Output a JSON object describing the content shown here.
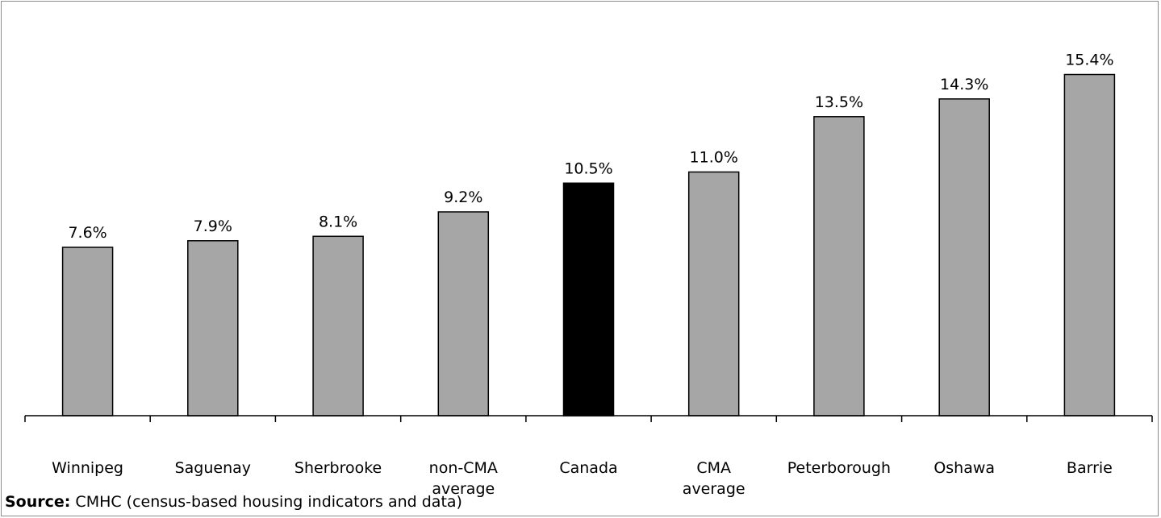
{
  "chart_data": {
    "type": "bar",
    "categories": [
      [
        "Winnipeg"
      ],
      [
        "Saguenay"
      ],
      [
        "Sherbrooke"
      ],
      [
        "non-CMA",
        "average"
      ],
      [
        "Canada"
      ],
      [
        "CMA",
        "average"
      ],
      [
        "Peterborough"
      ],
      [
        "Oshawa"
      ],
      [
        "Barrie"
      ]
    ],
    "values": [
      7.6,
      7.9,
      8.1,
      9.2,
      10.5,
      11.0,
      13.5,
      14.3,
      15.4
    ],
    "data_labels": [
      "7.6%",
      "7.9%",
      "8.1%",
      "9.2%",
      "10.5%",
      "11.0%",
      "13.5%",
      "14.3%",
      "15.4%"
    ],
    "highlight_category": "Canada",
    "ylim": [
      0,
      17
    ],
    "grid": false,
    "legend": "none",
    "colors": {
      "bar_fill": "#a6a6a6",
      "highlight_fill": "#000000",
      "bar_stroke": "#000000",
      "axis": "#000000"
    }
  },
  "source": {
    "label": "Source:",
    "text": " CMHC (census-based housing indicators and data)"
  }
}
